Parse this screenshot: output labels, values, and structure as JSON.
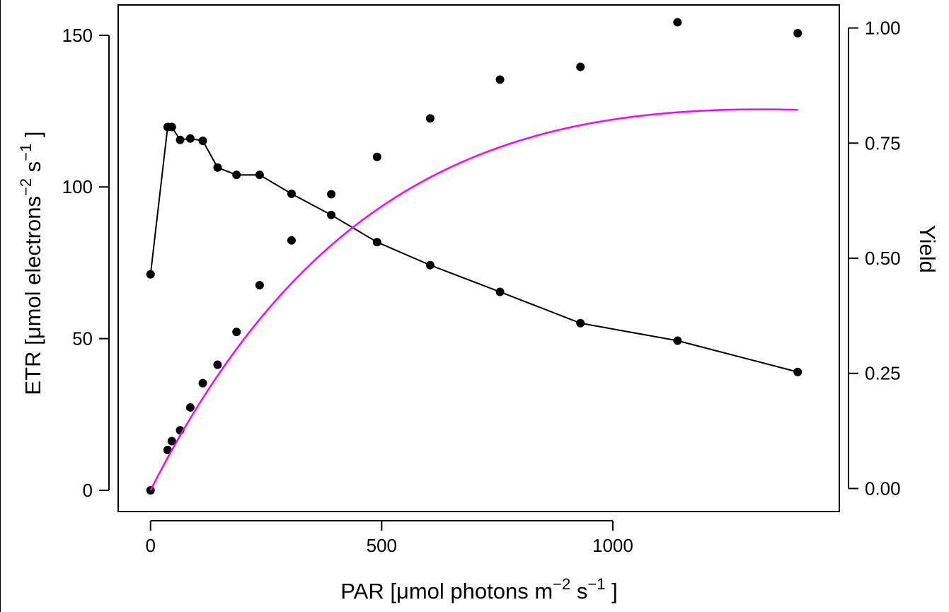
{
  "chart_data": {
    "type": "scatter",
    "xlabel": {
      "main": "PAR [",
      "mu": "μ",
      "rest": "mol photons m",
      "sup1": "−2",
      "mid": " s",
      "sup2": "−1",
      "end": " ]"
    },
    "ylabel_left": {
      "main": "ETR [",
      "mu": "μ",
      "rest": "mol electrons",
      "sup1": "−2",
      "mid": " s",
      "sup2": "−1",
      "end": " ]"
    },
    "ylabel_right": "Yield",
    "xlim": [
      -70,
      1490
    ],
    "ylim_left": [
      -7,
      160
    ],
    "ylim_right": [
      -0.05,
      1.05
    ],
    "x_ticks": [
      0,
      500,
      1000
    ],
    "x_tick_labels": [
      "0",
      "500",
      "1000"
    ],
    "y_left_ticks": [
      0,
      50,
      100,
      150
    ],
    "y_left_tick_labels": [
      "0",
      "50",
      "100",
      "150"
    ],
    "y_right_ticks": [
      0.0,
      0.25,
      0.5,
      0.75,
      1.0
    ],
    "y_right_tick_labels": [
      "0.00",
      "0.25",
      "0.50",
      "0.75",
      "1.00"
    ],
    "series": [
      {
        "axis": "left",
        "style": "points",
        "color": "#000000",
        "x": [
          0,
          37,
          46,
          64,
          86,
          113,
          145,
          186,
          236,
          305,
          391,
          490,
          605,
          756,
          930,
          1140,
          1400
        ],
        "y": [
          0,
          13.3,
          16.2,
          19.8,
          27.3,
          35.3,
          41.4,
          52.2,
          67.6,
          82.4,
          97.6,
          109.9,
          122.6,
          135.4,
          139.6,
          154.3,
          150.7
        ]
      },
      {
        "axis": "right",
        "style": "line+points",
        "color": "#000000",
        "x": [
          0,
          37,
          46,
          64,
          86,
          113,
          145,
          186,
          236,
          305,
          391,
          490,
          605,
          756,
          930,
          1140,
          1400
        ],
        "y": [
          0.465,
          0.785,
          0.785,
          0.757,
          0.76,
          0.755,
          0.697,
          0.681,
          0.681,
          0.64,
          0.594,
          0.535,
          0.485,
          0.427,
          0.359,
          0.321,
          0.253
        ]
      },
      {
        "axis": "left",
        "style": "curve",
        "color": "#ff00ff",
        "model": "etrmax*(1-exp(-alpha*x/etrmax))*exp(-beta*x/etrmax)",
        "params": {
          "etrmax": 200,
          "alpha": 0.3,
          "beta": 0.048
        },
        "x_range": [
          0,
          1400
        ]
      }
    ]
  }
}
